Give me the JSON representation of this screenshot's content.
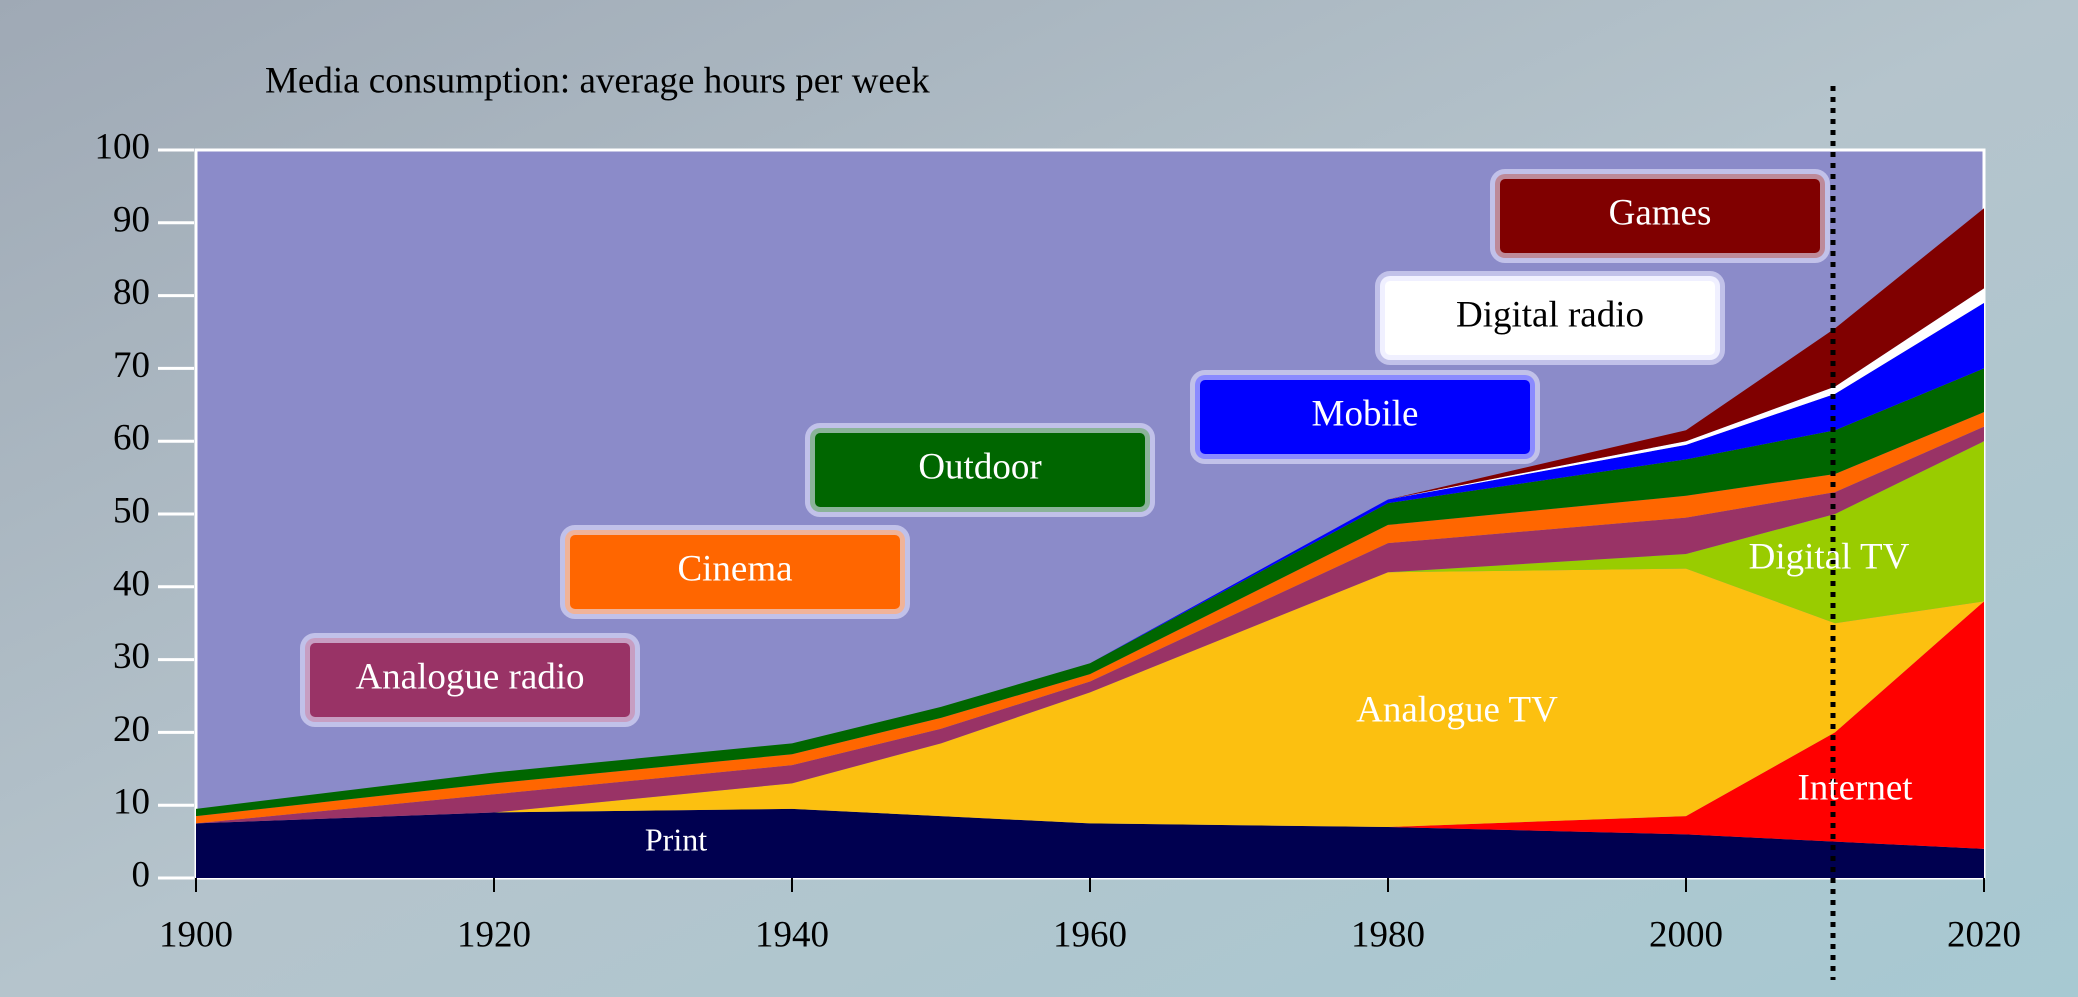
{
  "chart_data": {
    "type": "stacked_area",
    "title": "Media consumption: average hours per week",
    "x": [
      1900,
      1920,
      1940,
      1950,
      1960,
      1980,
      2000,
      2010,
      2020
    ],
    "series": [
      {
        "name": "Print",
        "color": "#000050",
        "values": [
          7.5,
          9,
          9.5,
          8.5,
          7.5,
          7,
          6,
          5,
          4
        ]
      },
      {
        "name": "Internet",
        "color": "#ff0000",
        "values": [
          0,
          0,
          0,
          0,
          0,
          0,
          2.5,
          15,
          34
        ]
      },
      {
        "name": "Analogue TV",
        "color": "#fcc010",
        "values": [
          0,
          0,
          3.5,
          10,
          18,
          35,
          34,
          15,
          0
        ]
      },
      {
        "name": "Digital TV",
        "color": "#99cc00",
        "values": [
          0,
          0,
          0,
          0,
          0,
          0,
          2,
          15,
          22
        ]
      },
      {
        "name": "Analogue radio",
        "color": "#993366",
        "values": [
          0,
          2.5,
          2.5,
          2,
          1.5,
          4,
          5,
          3,
          2
        ]
      },
      {
        "name": "Cinema",
        "color": "#ff6600",
        "values": [
          1,
          1.5,
          1.5,
          1.5,
          1,
          2.5,
          3,
          2.5,
          2
        ]
      },
      {
        "name": "Outdoor",
        "color": "#006600",
        "values": [
          1,
          1.5,
          1.5,
          1.5,
          1.5,
          3,
          5,
          6,
          6
        ]
      },
      {
        "name": "Mobile",
        "color": "#0000ff",
        "values": [
          0,
          0,
          0,
          0,
          0,
          0.5,
          2,
          5,
          9
        ]
      },
      {
        "name": "Digital radio",
        "color": "#ffffff",
        "values": [
          0,
          0,
          0,
          0,
          0,
          0,
          0.5,
          1,
          2
        ]
      },
      {
        "name": "Games",
        "color": "#800000",
        "values": [
          0,
          0,
          0,
          0,
          0,
          0,
          1.5,
          8,
          11
        ]
      }
    ],
    "xlim": [
      1900,
      2020
    ],
    "xticks": [
      1900,
      1920,
      1940,
      1960,
      1980,
      2000,
      2020
    ],
    "ylim": [
      0,
      100
    ],
    "yticks": [
      0,
      10,
      20,
      30,
      40,
      50,
      60,
      70,
      80,
      90,
      100
    ]
  }
}
